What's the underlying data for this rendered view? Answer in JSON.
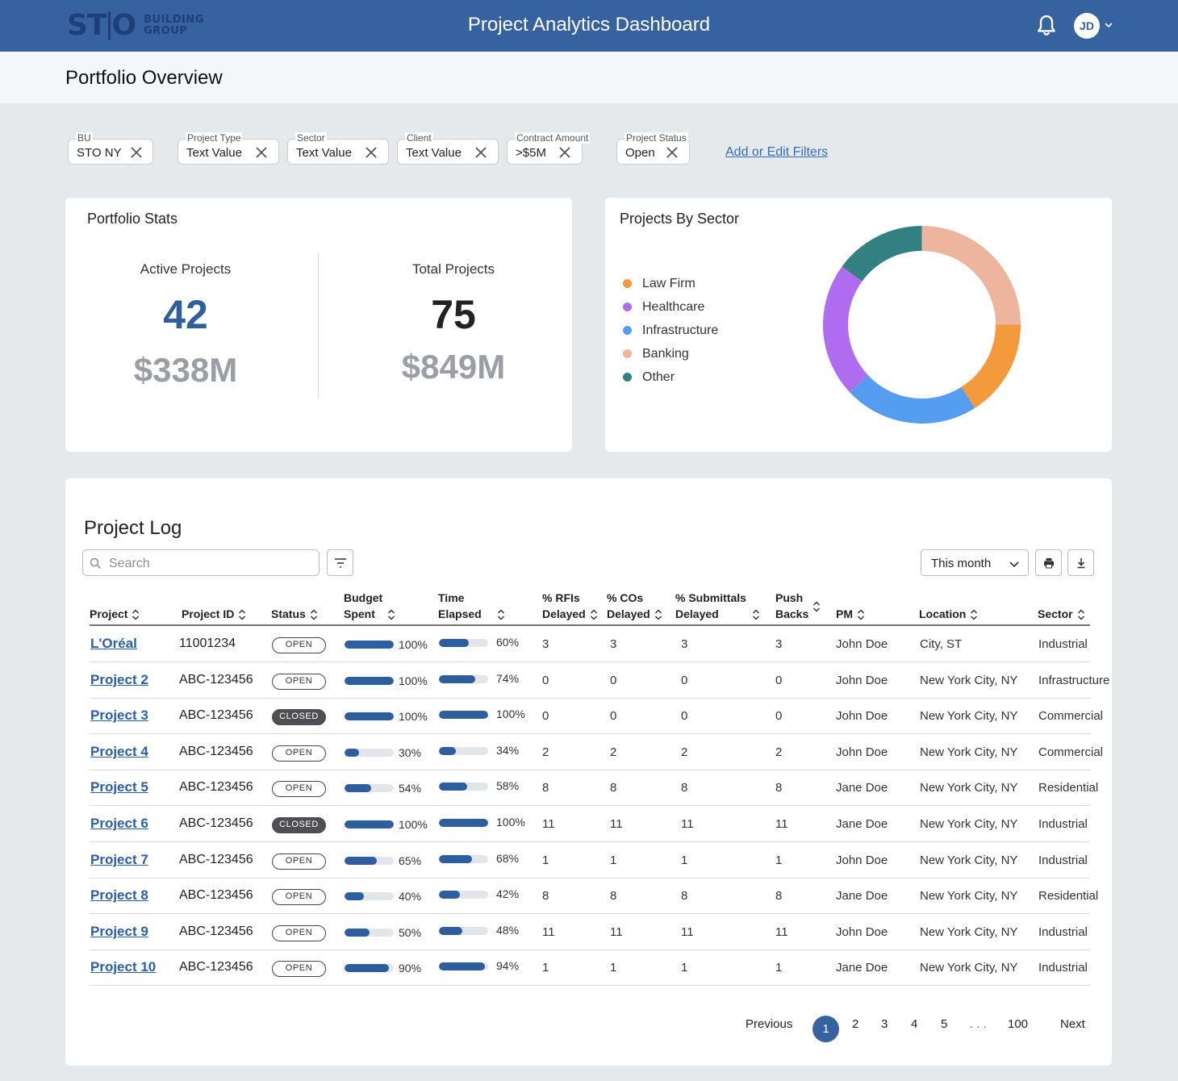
{
  "header": {
    "logo_main": "STO",
    "logo_sub_1": "BUILDING",
    "logo_sub_2": "GROUP",
    "title": "Project Analytics Dashboard",
    "avatar_initials": "JD"
  },
  "page": {
    "title": "Portfolio Overview"
  },
  "filters": [
    {
      "label": "BU",
      "value": "STO NY"
    },
    {
      "label": "Project Type",
      "value": "Text Value"
    },
    {
      "label": "Sector",
      "value": "Text Value"
    },
    {
      "label": "Client",
      "value": "Text Value"
    },
    {
      "label": "Contract Amount",
      "value": ">$5M"
    },
    {
      "label": "Project Status",
      "value": "Open"
    }
  ],
  "add_filters_label": "Add or Edit Filters",
  "stats": {
    "title": "Portfolio Stats",
    "active_label": "Active Projects",
    "active_count": "42",
    "active_value": "$338M",
    "total_label": "Total Projects",
    "total_count": "75",
    "total_value": "$849M"
  },
  "sector_chart": {
    "title": "Projects By Sector",
    "legend": [
      {
        "name": "Law Firm",
        "color": "#f39a3d"
      },
      {
        "name": "Healthcare",
        "color": "#b06cf0"
      },
      {
        "name": "Infrastructure",
        "color": "#549df0"
      },
      {
        "name": "Banking",
        "color": "#edb49e"
      },
      {
        "name": "Other",
        "color": "#338082"
      }
    ]
  },
  "chart_data": {
    "type": "pie",
    "title": "Projects By Sector",
    "categories": [
      "Banking",
      "Law Firm",
      "Infrastructure",
      "Healthcare",
      "Other"
    ],
    "values": [
      25,
      16,
      22,
      22,
      15
    ],
    "colors": [
      "#edb49e",
      "#f39a3d",
      "#549df0",
      "#b06cf0",
      "#338082"
    ],
    "donut": true
  },
  "log": {
    "title": "Project Log",
    "search_placeholder": "Search",
    "period": "This month",
    "columns": {
      "project": "Project",
      "project_id": "Project ID",
      "status": "Status",
      "budget_1": "Budget",
      "budget_2": "Spent",
      "time_1": "Time",
      "time_2": "Elapsed",
      "rfis_1": "% RFIs",
      "rfis_2": "Delayed",
      "cos_1": "% COs",
      "cos_2": "Delayed",
      "subm_1": "% Submittals",
      "subm_2": "Delayed",
      "push_1": "Push",
      "push_2": "Backs",
      "pm": "PM",
      "location": "Location",
      "sector": "Sector"
    },
    "rows": [
      {
        "name": "L'Oréal",
        "id": "11001234",
        "status": "OPEN",
        "budget": 100,
        "budget_label": "100%",
        "time": 60,
        "time_label": "60%",
        "rfis": "3",
        "cos": "3",
        "subm": "3",
        "push": "3",
        "pm": "John Doe",
        "location": "City, ST",
        "sector": "Industrial"
      },
      {
        "name": "Project 2",
        "id": "ABC-123456",
        "status": "OPEN",
        "budget": 100,
        "budget_label": "100%",
        "time": 74,
        "time_label": "74%",
        "rfis": "0",
        "cos": "0",
        "subm": "0",
        "push": "0",
        "pm": "John Doe",
        "location": "New York City, NY",
        "sector": "Infrastructure"
      },
      {
        "name": "Project 3",
        "id": "ABC-123456",
        "status": "CLOSED",
        "budget": 100,
        "budget_label": "100%",
        "time": 100,
        "time_label": "100%",
        "rfis": "0",
        "cos": "0",
        "subm": "0",
        "push": "0",
        "pm": "John Doe",
        "location": "New York City, NY",
        "sector": "Commercial"
      },
      {
        "name": "Project 4",
        "id": "ABC-123456",
        "status": "OPEN",
        "budget": 30,
        "budget_label": "30%",
        "time": 34,
        "time_label": "34%",
        "rfis": "2",
        "cos": "2",
        "subm": "2",
        "push": "2",
        "pm": "John Doe",
        "location": "New York City, NY",
        "sector": "Commercial"
      },
      {
        "name": "Project 5",
        "id": "ABC-123456",
        "status": "OPEN",
        "budget": 54,
        "budget_label": "54%",
        "time": 58,
        "time_label": "58%",
        "rfis": "8",
        "cos": "8",
        "subm": "8",
        "push": "8",
        "pm": "Jane Doe",
        "location": "New York City, NY",
        "sector": "Residential"
      },
      {
        "name": "Project 6",
        "id": "ABC-123456",
        "status": "CLOSED",
        "budget": 100,
        "budget_label": "100%",
        "time": 100,
        "time_label": "100%",
        "rfis": "11",
        "cos": "11",
        "subm": "11",
        "push": "11",
        "pm": "Jane Doe",
        "location": "New York City, NY",
        "sector": "Industrial"
      },
      {
        "name": "Project 7",
        "id": "ABC-123456",
        "status": "OPEN",
        "budget": 65,
        "budget_label": "65%",
        "time": 68,
        "time_label": "68%",
        "rfis": "1",
        "cos": "1",
        "subm": "1",
        "push": "1",
        "pm": "John Doe",
        "location": "New York City, NY",
        "sector": "Industrial"
      },
      {
        "name": "Project 8",
        "id": "ABC-123456",
        "status": "OPEN",
        "budget": 40,
        "budget_label": "40%",
        "time": 42,
        "time_label": "42%",
        "rfis": "8",
        "cos": "8",
        "subm": "8",
        "push": "8",
        "pm": "Jane Doe",
        "location": "New York City, NY",
        "sector": "Residential"
      },
      {
        "name": "Project 9",
        "id": "ABC-123456",
        "status": "OPEN",
        "budget": 50,
        "budget_label": "50%",
        "time": 48,
        "time_label": "48%",
        "rfis": "11",
        "cos": "11",
        "subm": "11",
        "push": "11",
        "pm": "John Doe",
        "location": "New York City, NY",
        "sector": "Industrial"
      },
      {
        "name": "Project 10",
        "id": "ABC-123456",
        "status": "OPEN",
        "budget": 90,
        "budget_label": "90%",
        "time": 94,
        "time_label": "94%",
        "rfis": "1",
        "cos": "1",
        "subm": "1",
        "push": "1",
        "pm": "Jane Doe",
        "location": "New York City, NY",
        "sector": "Industrial"
      }
    ]
  },
  "pagination": {
    "previous": "Previous",
    "pages": [
      "1",
      "2",
      "3",
      "4",
      "5"
    ],
    "ellipsis": ". . .",
    "last": "100",
    "next": "Next"
  }
}
